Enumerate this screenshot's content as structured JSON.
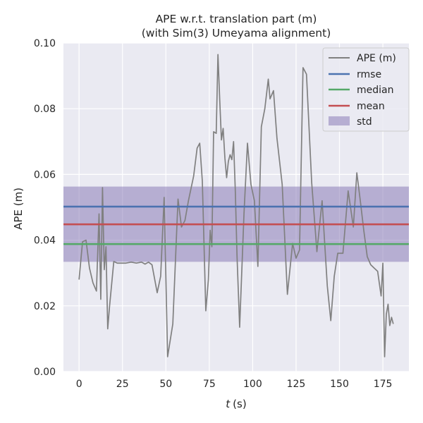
{
  "chart_data": {
    "type": "line",
    "title": "APE w.r.t. translation part (m)",
    "subtitle": "(with Sim(3) Umeyama alignment)",
    "xlabel_var": "t",
    "xlabel_unit": "(s)",
    "ylabel": "APE (m)",
    "xlim": [
      -9,
      190
    ],
    "ylim": [
      0,
      0.1
    ],
    "xticks": [
      0,
      25,
      50,
      75,
      100,
      125,
      150,
      175
    ],
    "xtick_labels": [
      "0",
      "25",
      "50",
      "75",
      "100",
      "125",
      "150",
      "175"
    ],
    "yticks": [
      0,
      0.02,
      0.04,
      0.06,
      0.08,
      0.1
    ],
    "ytick_labels": [
      "0.00",
      "0.02",
      "0.04",
      "0.06",
      "0.08",
      "0.10"
    ],
    "grid": true,
    "legend_position": "top-right",
    "series": [
      {
        "name": "APE (m)",
        "color": "#808080",
        "x": [
          0,
          2,
          4,
          6,
          8,
          10,
          11.5,
          12.5,
          13.5,
          14.5,
          15.5,
          16.5,
          17.5,
          20,
          22,
          25,
          27,
          30,
          33,
          36,
          38,
          40,
          42,
          45,
          47,
          49,
          51,
          54,
          57,
          59,
          61,
          63,
          66,
          68,
          69.5,
          71,
          73,
          74.5,
          75.5,
          76.5,
          77.5,
          79,
          80,
          81,
          82,
          83,
          84,
          85,
          86,
          87,
          88,
          89,
          90,
          91,
          92.5,
          95,
          97,
          99,
          101,
          103,
          105,
          107,
          109,
          110,
          112,
          114,
          117,
          120,
          123,
          125,
          127,
          129,
          131,
          134,
          137,
          140,
          143,
          145,
          147,
          149,
          152,
          155,
          158,
          160,
          162,
          164,
          166,
          168,
          170,
          172,
          174,
          175,
          176,
          177,
          178,
          179,
          180,
          181
        ],
        "y": [
          0.028,
          0.0395,
          0.04,
          0.0315,
          0.027,
          0.0245,
          0.048,
          0.022,
          0.056,
          0.031,
          0.038,
          0.013,
          0.0195,
          0.0335,
          0.033,
          0.033,
          0.033,
          0.0333,
          0.033,
          0.0333,
          0.0327,
          0.0333,
          0.0325,
          0.024,
          0.029,
          0.053,
          0.0045,
          0.0145,
          0.0525,
          0.044,
          0.046,
          0.052,
          0.0595,
          0.068,
          0.0695,
          0.058,
          0.0185,
          0.028,
          0.043,
          0.038,
          0.073,
          0.0725,
          0.0965,
          0.083,
          0.0705,
          0.074,
          0.065,
          0.059,
          0.064,
          0.066,
          0.0645,
          0.07,
          0.055,
          0.035,
          0.0135,
          0.048,
          0.0695,
          0.057,
          0.052,
          0.032,
          0.0745,
          0.08,
          0.089,
          0.083,
          0.0855,
          0.071,
          0.057,
          0.0235,
          0.039,
          0.0345,
          0.037,
          0.0925,
          0.0905,
          0.0575,
          0.0365,
          0.052,
          0.026,
          0.0155,
          0.029,
          0.036,
          0.036,
          0.055,
          0.044,
          0.0605,
          0.052,
          0.043,
          0.035,
          0.0325,
          0.0315,
          0.0305,
          0.023,
          0.033,
          0.0045,
          0.0175,
          0.0205,
          0.014,
          0.0165,
          0.0145
        ]
      }
    ],
    "stats": [
      {
        "name": "rmse",
        "value": 0.0502,
        "color": "#4c72b0"
      },
      {
        "name": "median",
        "value": 0.0388,
        "color": "#55a868"
      },
      {
        "name": "mean",
        "value": 0.0448,
        "color": "#c44e52"
      }
    ],
    "std_band": {
      "name": "std",
      "low": 0.0334,
      "high": 0.0563,
      "color": "#8172b2"
    }
  }
}
